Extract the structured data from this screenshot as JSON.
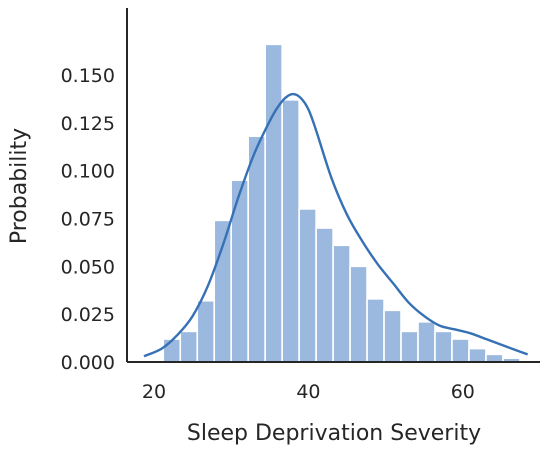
{
  "chart_data": {
    "type": "bar",
    "title": "",
    "xlabel": "Sleep Deprivation Severity",
    "ylabel": "Probability",
    "xlim": [
      16.5,
      70
    ],
    "ylim": [
      0,
      0.185
    ],
    "xticks": [
      20,
      40,
      60
    ],
    "yticks": [
      0.0,
      0.025,
      0.05,
      0.075,
      0.1,
      0.125,
      0.15
    ],
    "ytick_labels": [
      "0.000",
      "0.025",
      "0.050",
      "0.075",
      "0.100",
      "0.125",
      "0.150"
    ],
    "grid": false,
    "legend": "none",
    "bar_color": "#9bb8de",
    "bar_edge_color": "#ffffff",
    "kde_color": "#3670b5",
    "axis_color": "#262626",
    "histogram": {
      "bin_edges": [
        21.2,
        23.4,
        25.6,
        27.8,
        30.0,
        32.2,
        34.4,
        36.6,
        38.8,
        41.0,
        43.2,
        45.4,
        47.6,
        49.8,
        52.0,
        54.2,
        56.4,
        58.6,
        60.8,
        63.0,
        65.2,
        67.4
      ],
      "values": [
        0.012,
        0.016,
        0.032,
        0.074,
        0.095,
        0.118,
        0.166,
        0.137,
        0.08,
        0.07,
        0.061,
        0.05,
        0.033,
        0.027,
        0.016,
        0.021,
        0.016,
        0.012,
        0.007,
        0.004,
        0.002
      ]
    },
    "kde": {
      "x": [
        18.7,
        21,
        23,
        25,
        27,
        29,
        31,
        33,
        35,
        36,
        37,
        38,
        39,
        40,
        41,
        43,
        45,
        47,
        49,
        51,
        53,
        55,
        57,
        59,
        61,
        63,
        65,
        67,
        68.4
      ],
      "y": [
        0.003,
        0.007,
        0.014,
        0.024,
        0.04,
        0.062,
        0.087,
        0.109,
        0.126,
        0.133,
        0.138,
        0.14,
        0.138,
        0.132,
        0.121,
        0.096,
        0.077,
        0.063,
        0.051,
        0.041,
        0.031,
        0.024,
        0.019,
        0.017,
        0.015,
        0.012,
        0.009,
        0.006,
        0.004
      ]
    }
  }
}
